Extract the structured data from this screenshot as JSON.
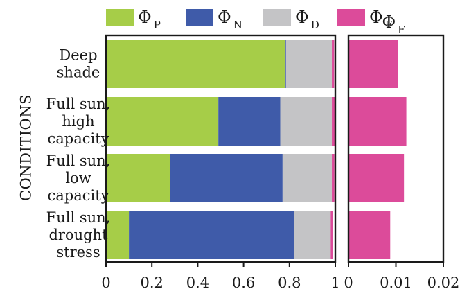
{
  "chart_data": [
    {
      "type": "bar",
      "orientation": "horizontal",
      "stacked": true,
      "ylabel": "CONDITIONS",
      "categories": [
        [
          "Deep",
          "shade"
        ],
        [
          "Full sun,",
          "high",
          "capacity"
        ],
        [
          "Full sun,",
          "low",
          "capacity"
        ],
        [
          "Full sun,",
          "drought",
          "stress"
        ]
      ],
      "series": [
        {
          "name": "ΦP",
          "symbol": "Φ",
          "subscript": "P",
          "color": "#a6cd48",
          "values": [
            0.78,
            0.49,
            0.28,
            0.1
          ]
        },
        {
          "name": "ΦN",
          "symbol": "Φ",
          "subscript": "N",
          "color": "#3f5ba9",
          "values": [
            0.005,
            0.27,
            0.49,
            0.72
          ]
        },
        {
          "name": "ΦD",
          "symbol": "Φ",
          "subscript": "D",
          "color": "#c4c4c6",
          "values": [
            0.2,
            0.225,
            0.215,
            0.16
          ]
        },
        {
          "name": "ΦF",
          "symbol": "Φ",
          "subscript": "F",
          "color": "#dc4b9a",
          "values": [
            0.01,
            0.012,
            0.011,
            0.009
          ]
        }
      ],
      "xlim": [
        0,
        1
      ],
      "xticks": [
        "0",
        "0.2",
        "0.4",
        "0.6",
        "0.8",
        "1"
      ],
      "grid": false,
      "legend_position": "top"
    },
    {
      "type": "bar",
      "orientation": "horizontal",
      "title": "ΦF",
      "title_symbol": "Φ",
      "title_subscript": "F",
      "categories": [
        [
          "Deep",
          "shade"
        ],
        [
          "Full sun,",
          "high",
          "capacity"
        ],
        [
          "Full sun,",
          "low",
          "capacity"
        ],
        [
          "Full sun,",
          "drought",
          "stress"
        ]
      ],
      "values": [
        0.0105,
        0.0122,
        0.0117,
        0.0088
      ],
      "color": "#dc4b9a",
      "xlim": [
        0,
        0.02
      ],
      "xticks": [
        "0",
        "0.01",
        "0.02"
      ],
      "grid": false
    }
  ]
}
